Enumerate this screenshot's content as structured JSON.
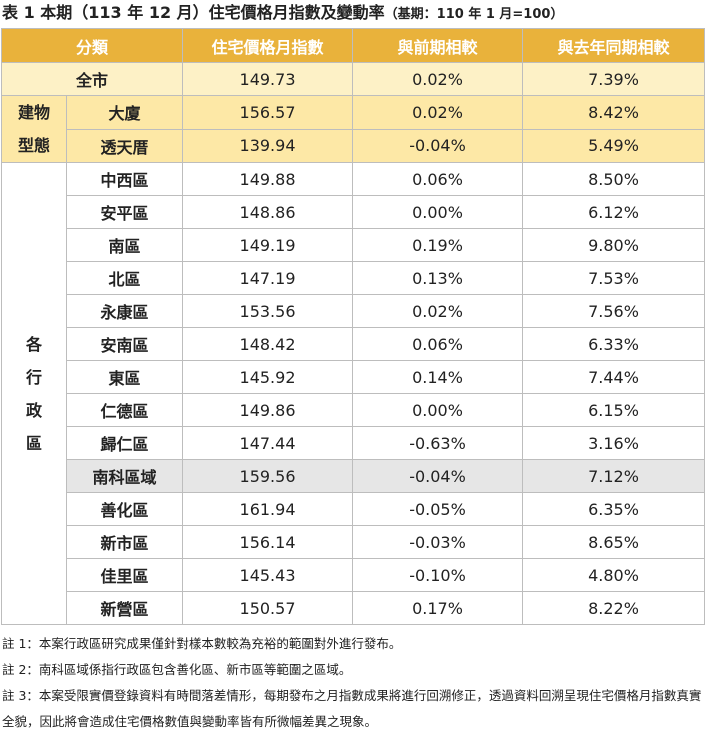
{
  "title": "表 1 本期（113 年 12 月）住宅價格月指數及變動率",
  "title_note": "（基期：110 年 1 月=100）",
  "table": {
    "header": [
      "分類",
      "住宅價格月指數",
      "與前期相較",
      "與去年同期相較"
    ],
    "total": {
      "name": "全市",
      "values": [
        "149.73",
        "0.02%",
        "7.39%"
      ]
    },
    "groups": [
      {
        "label": [
          "建物",
          "型態"
        ],
        "fill": "#fde8a6",
        "rows": [
          {
            "name": "大廈",
            "values": [
              "156.57",
              "0.02%",
              "8.42%"
            ]
          },
          {
            "name": "透天厝",
            "values": [
              "139.94",
              "-0.04%",
              "5.49%"
            ]
          }
        ]
      },
      {
        "label": [
          "各",
          "行",
          "政",
          "區"
        ],
        "fill": "#ffffff",
        "rows": [
          {
            "name": "中西區",
            "values": [
              "149.88",
              "0.06%",
              "8.50%"
            ]
          },
          {
            "name": "安平區",
            "values": [
              "148.86",
              "0.00%",
              "6.12%"
            ]
          },
          {
            "name": "南區",
            "values": [
              "149.19",
              "0.19%",
              "9.80%"
            ]
          },
          {
            "name": "北區",
            "values": [
              "147.19",
              "0.13%",
              "7.53%"
            ]
          },
          {
            "name": "永康區",
            "values": [
              "153.56",
              "0.02%",
              "7.56%"
            ]
          },
          {
            "name": "安南區",
            "values": [
              "148.42",
              "0.06%",
              "6.33%"
            ]
          },
          {
            "name": "東區",
            "values": [
              "145.92",
              "0.14%",
              "7.44%"
            ]
          },
          {
            "name": "仁德區",
            "values": [
              "149.86",
              "0.00%",
              "6.15%"
            ]
          },
          {
            "name": "歸仁區",
            "values": [
              "147.44",
              "-0.63%",
              "3.16%"
            ]
          },
          {
            "name": "南科區域",
            "values": [
              "159.56",
              "-0.04%",
              "7.12%"
            ],
            "fill": "#e6e6e6"
          },
          {
            "name": "善化區",
            "values": [
              "161.94",
              "-0.05%",
              "6.35%"
            ]
          },
          {
            "name": "新市區",
            "values": [
              "156.14",
              "-0.03%",
              "8.65%"
            ]
          },
          {
            "name": "佳里區",
            "values": [
              "145.43",
              "-0.10%",
              "4.80%"
            ]
          },
          {
            "name": "新營區",
            "values": [
              "150.57",
              "0.17%",
              "8.22%"
            ]
          }
        ]
      }
    ]
  },
  "notes": [
    "註 1：本案行政區研究成果僅針對樣本數較為充裕的範圍對外進行發布。",
    "註 2：南科區域係指行政區包含善化區、新市區等範圍之區域。",
    "註 3：本案受限實價登錄資料有時間落差情形，每期發布之月指數成果將進行回溯修正，透過資料回溯呈現住宅價格月指數真實全貌，因此將會造成住宅價格數值與變動率皆有所微幅差異之現象。"
  ]
}
